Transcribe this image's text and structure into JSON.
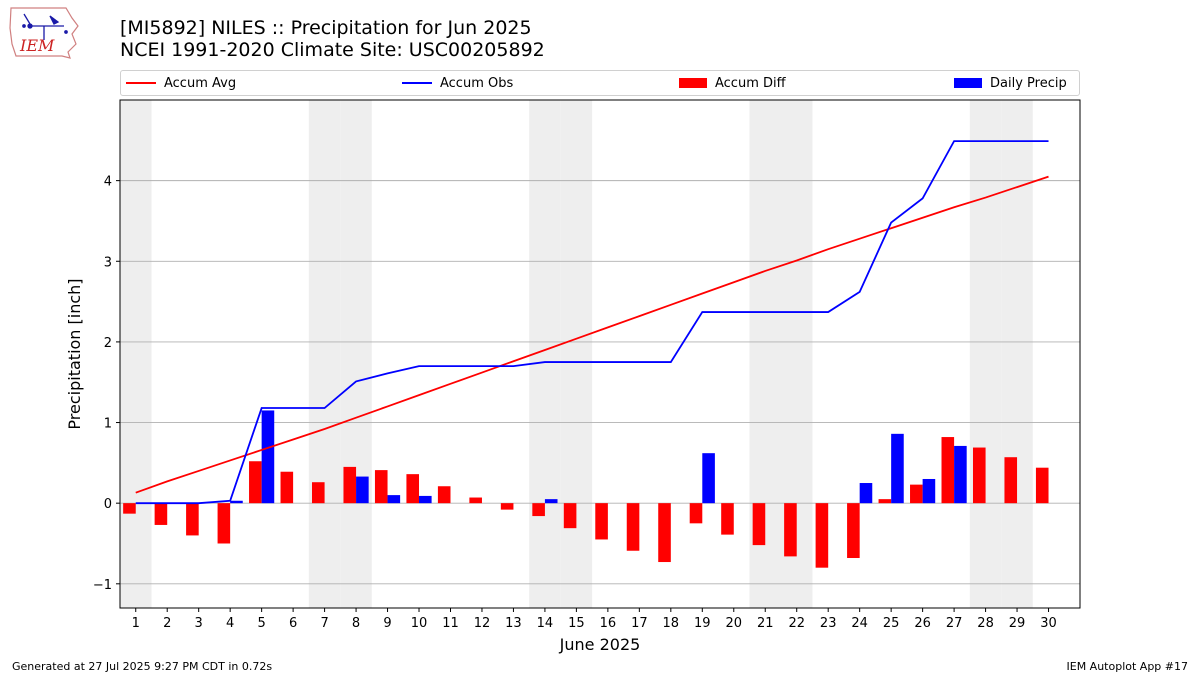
{
  "header": {
    "title_line1": "[MI5892] NILES :: Precipitation for Jun 2025",
    "title_line2": "NCEI 1991-2020 Climate Site: USC00205892"
  },
  "logo": {
    "name": "iem-logo",
    "text": "IEM"
  },
  "legend": [
    {
      "label": "Accum Avg",
      "kind": "line",
      "color": "#ff0000"
    },
    {
      "label": "Accum Obs",
      "kind": "line",
      "color": "#0000ff"
    },
    {
      "label": "Accum Diff",
      "kind": "bar",
      "color": "#ff0000"
    },
    {
      "label": "Daily Precip",
      "kind": "bar",
      "color": "#0000ff"
    }
  ],
  "footer": {
    "left": "Generated at 27 Jul 2025 9:27 PM CDT in 0.72s",
    "right": "IEM Autoplot App #17"
  },
  "chart_data": {
    "type": "bar",
    "xlabel": "June 2025",
    "ylabel": "Precipitation [inch]",
    "ylim": [
      -1.3,
      5.0
    ],
    "xlim": [
      0.5,
      31.0
    ],
    "yticks": [
      -1,
      0,
      1,
      2,
      3,
      4
    ],
    "ytick_labels": [
      "−1",
      "0",
      "1",
      "2",
      "3",
      "4"
    ],
    "grid": true,
    "weekend_shading_days": [
      1,
      7,
      8,
      14,
      15,
      21,
      22,
      28,
      29
    ],
    "x": [
      1,
      2,
      3,
      4,
      5,
      6,
      7,
      8,
      9,
      10,
      11,
      12,
      13,
      14,
      15,
      16,
      17,
      18,
      19,
      20,
      21,
      22,
      23,
      24,
      25,
      26,
      27,
      28,
      29,
      30
    ],
    "colors": {
      "avg": "#ff0000",
      "obs": "#0000ff",
      "diff": "#ff0000",
      "daily": "#0000ff",
      "shade": "#eeeeee"
    },
    "series": [
      {
        "name": "Accum Avg",
        "type": "line",
        "values": [
          0.13,
          0.27,
          0.4,
          0.53,
          0.66,
          0.79,
          0.92,
          1.06,
          1.2,
          1.34,
          1.48,
          1.62,
          1.76,
          1.9,
          2.04,
          2.18,
          2.32,
          2.46,
          2.6,
          2.74,
          2.88,
          3.01,
          3.15,
          3.28,
          3.41,
          3.54,
          3.67,
          3.79,
          3.92,
          4.05
        ]
      },
      {
        "name": "Accum Obs",
        "type": "line",
        "values": [
          0.0,
          0.0,
          0.0,
          0.03,
          1.18,
          1.18,
          1.18,
          1.51,
          1.61,
          1.7,
          1.7,
          1.7,
          1.7,
          1.75,
          1.75,
          1.75,
          1.75,
          1.75,
          2.37,
          2.37,
          2.37,
          2.37,
          2.37,
          2.62,
          3.48,
          3.78,
          4.49,
          4.49,
          4.49,
          4.49
        ]
      },
      {
        "name": "Accum Diff",
        "type": "bar",
        "values": [
          -0.13,
          -0.27,
          -0.4,
          -0.5,
          0.52,
          0.39,
          0.26,
          0.45,
          0.41,
          0.36,
          0.21,
          0.07,
          -0.08,
          -0.16,
          -0.31,
          -0.45,
          -0.59,
          -0.73,
          -0.25,
          -0.39,
          -0.52,
          -0.66,
          -0.8,
          -0.68,
          0.05,
          0.23,
          0.82,
          0.69,
          0.57,
          0.44
        ]
      },
      {
        "name": "Daily Precip",
        "type": "bar",
        "values": [
          0,
          0,
          0,
          0.03,
          1.15,
          0,
          0,
          0.33,
          0.1,
          0.09,
          0,
          0,
          0,
          0.05,
          0,
          0,
          0,
          0,
          0.62,
          0,
          0,
          0,
          0,
          0.25,
          0.86,
          0.3,
          0.71,
          0,
          0,
          0
        ]
      }
    ]
  }
}
